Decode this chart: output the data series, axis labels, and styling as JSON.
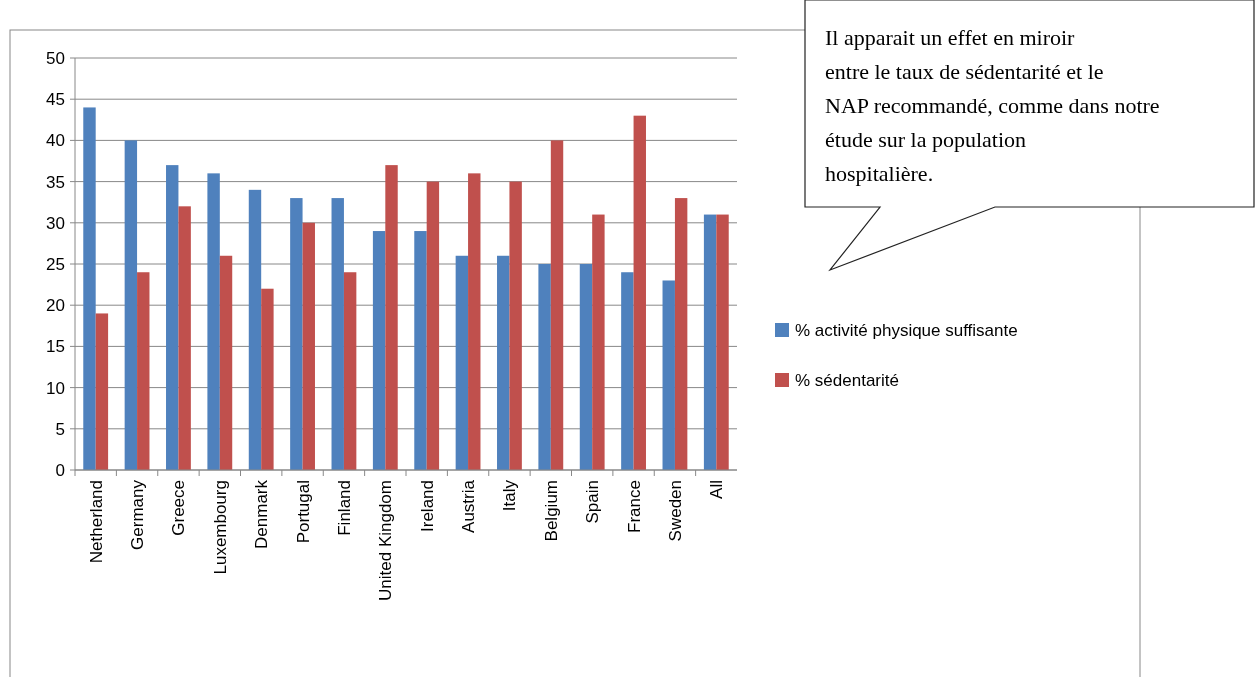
{
  "chart_data": {
    "type": "bar",
    "categories": [
      "Netherland",
      "Germany",
      "Greece",
      "Luxembourg",
      "Denmark",
      "Portugal",
      "Finland",
      "United Kingdom",
      "Ireland",
      "Austria",
      "Italy",
      "Belgium",
      "Spain",
      "France",
      "Sweden",
      "All"
    ],
    "series": [
      {
        "name": "% activité physique suffisante",
        "color": "#4f81bd",
        "values": [
          44,
          40,
          37,
          36,
          34,
          33,
          33,
          29,
          29,
          26,
          26,
          25,
          25,
          24,
          23,
          31
        ]
      },
      {
        "name": "% sédentarité",
        "color": "#c0504d",
        "values": [
          19,
          24,
          32,
          26,
          22,
          30,
          24,
          37,
          35,
          36,
          35,
          40,
          31,
          43,
          33,
          31
        ]
      }
    ],
    "ylim": [
      0,
      50
    ],
    "yticks": [
      0,
      5,
      10,
      15,
      20,
      25,
      30,
      35,
      40,
      45,
      50
    ],
    "grid": "y",
    "legend": "right",
    "annotations": [
      "Il apparait un effet en miroir entre le taux de sédentarité et le NAP recommandé, comme dans notre étude sur la population hospitalière."
    ]
  }
}
